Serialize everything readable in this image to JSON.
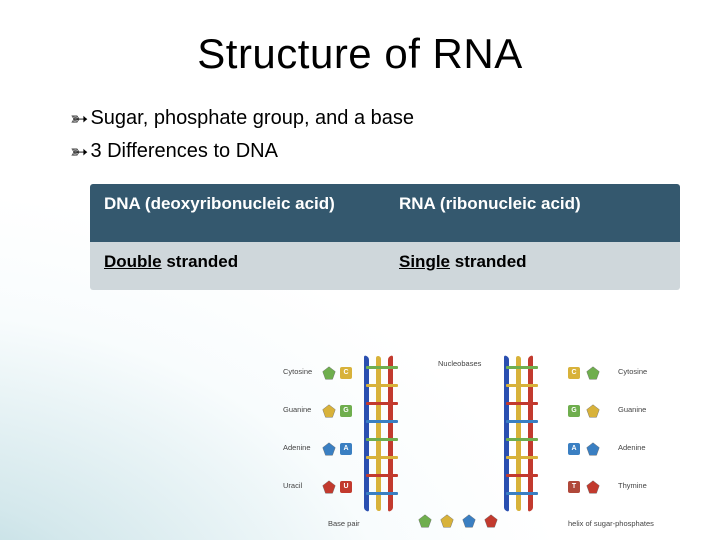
{
  "title": "Structure of RNA",
  "bullets": [
    "Sugar, phosphate group, and a base",
    "3 Differences to DNA"
  ],
  "table": {
    "header": {
      "left": "DNA (deoxyribonucleic acid)",
      "right": "RNA (ribonucleic acid)"
    },
    "row": {
      "left_u": "Double",
      "left_rest": " stranded",
      "right_u": "Single",
      "right_rest": " stranded"
    },
    "colors": {
      "header_bg": "#34586e",
      "body_bg": "#cfd7db"
    }
  },
  "diagram": {
    "strand_colors": {
      "blue": "#2a4fb0",
      "red": "#c23a2e",
      "yellow": "#d8b23a"
    },
    "rung_colors": [
      "#6fae4e",
      "#d8b23a",
      "#c23a2e",
      "#3a7fc2",
      "#6fae4e",
      "#d8b23a",
      "#c23a2e",
      "#3a7fc2"
    ],
    "left_labels": [
      "Cytosine",
      "Guanine",
      "Adenine",
      "Uracil"
    ],
    "right_labels": [
      "Cytosine",
      "Guanine",
      "Adenine",
      "Thymine"
    ],
    "nucleobases_label": "Nucleobases",
    "bottom_left": "Base pair",
    "bottom_right": "helix of sugar-phosphates",
    "pentagon_colors": [
      "#6fae4e",
      "#d8b23a",
      "#3a7fc2",
      "#c23a2e"
    ],
    "tag_letters": [
      "C",
      "G",
      "A",
      "U",
      "T"
    ],
    "tag_colors": {
      "C": "#d8b23a",
      "G": "#6fae4e",
      "A": "#3a7fc2",
      "U": "#c23a2e",
      "T": "#b0483a"
    }
  }
}
